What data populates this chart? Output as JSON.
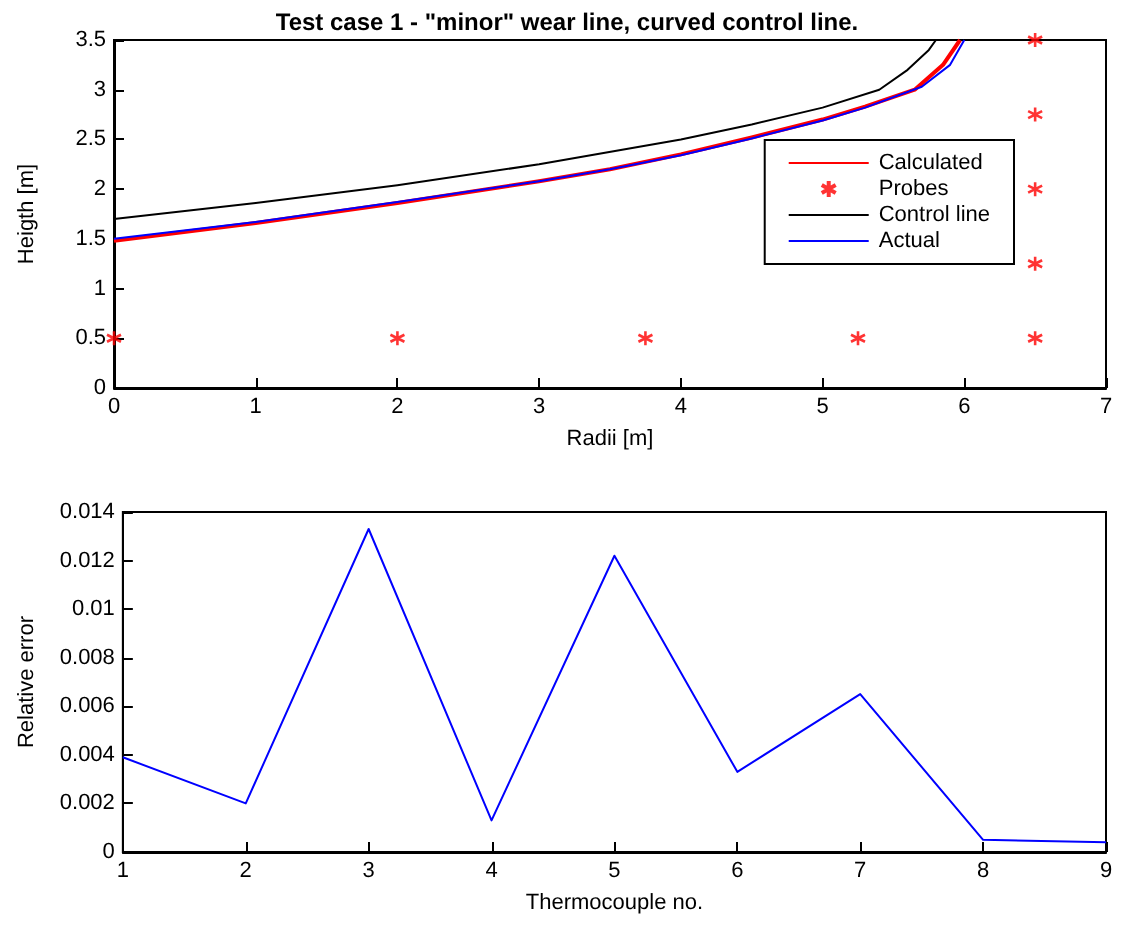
{
  "chart_data": [
    {
      "type": "line",
      "title": "Test case 1 - \"minor\" wear line, curved control line.",
      "xlabel": "Radii [m]",
      "ylabel": "Heigth [m]",
      "xlim": [
        0,
        7
      ],
      "xticks": [
        0,
        1,
        2,
        3,
        4,
        5,
        6,
        7
      ],
      "ylim": [
        0,
        3.5
      ],
      "yticks": [
        0,
        0.5,
        1,
        1.5,
        2,
        2.5,
        3,
        3.5
      ],
      "grid": false,
      "legend": "right",
      "marker": "none",
      "series": [
        {
          "name": "Calculated",
          "color": "#ff0000",
          "x": [
            0,
            1,
            2,
            3,
            3.5,
            4,
            4.5,
            5,
            5.3,
            5.65,
            5.85,
            5.97
          ],
          "values": [
            1.48,
            1.66,
            1.86,
            2.08,
            2.2,
            2.35,
            2.52,
            2.7,
            2.83,
            3.0,
            3.25,
            3.5
          ]
        },
        {
          "name": "Probes",
          "type": "scatter",
          "marker": "cross",
          "color": "#ff0000",
          "x": [
            0,
            2,
            3.75,
            5.25,
            6.5,
            6.5,
            6.5,
            6.5,
            6.5
          ],
          "values": [
            0.5,
            0.5,
            0.5,
            0.5,
            0.5,
            1.25,
            2,
            2.75,
            3.5
          ]
        },
        {
          "name": "Control line",
          "color": "#000000",
          "x": [
            0,
            1,
            2,
            3,
            4,
            4.5,
            5,
            5.4,
            5.6,
            5.75,
            5.8
          ],
          "values": [
            1.7,
            1.86,
            2.04,
            2.25,
            2.5,
            2.65,
            2.82,
            3.0,
            3.2,
            3.4,
            3.5
          ]
        },
        {
          "name": "Actual",
          "color": "#0000ff",
          "x": [
            0,
            1,
            2,
            3,
            3.5,
            4,
            4.5,
            5,
            5.3,
            5.7,
            5.9,
            6.0
          ],
          "values": [
            1.5,
            1.67,
            1.87,
            2.08,
            2.2,
            2.34,
            2.51,
            2.69,
            2.82,
            3.03,
            3.25,
            3.5
          ]
        }
      ]
    },
    {
      "type": "line",
      "xlabel": "Thermocouple no.",
      "ylabel": "Relative error",
      "xlim": [
        1,
        9
      ],
      "xticks": [
        1,
        2,
        3,
        4,
        5,
        6,
        7,
        8,
        9
      ],
      "ylim": [
        0,
        0.014
      ],
      "yticks": [
        0,
        0.002,
        0.004,
        0.006,
        0.008,
        0.01,
        0.012,
        0.014
      ],
      "grid": false,
      "legend": false,
      "marker": "none",
      "series": [
        {
          "color": "#0000ff",
          "x": [
            1,
            2,
            3,
            4,
            5,
            6,
            7,
            8,
            9
          ],
          "values": [
            0.0039,
            0.002,
            0.0133,
            0.0013,
            0.0122,
            0.0033,
            0.0065,
            0.0005,
            0.0004
          ]
        }
      ]
    }
  ]
}
